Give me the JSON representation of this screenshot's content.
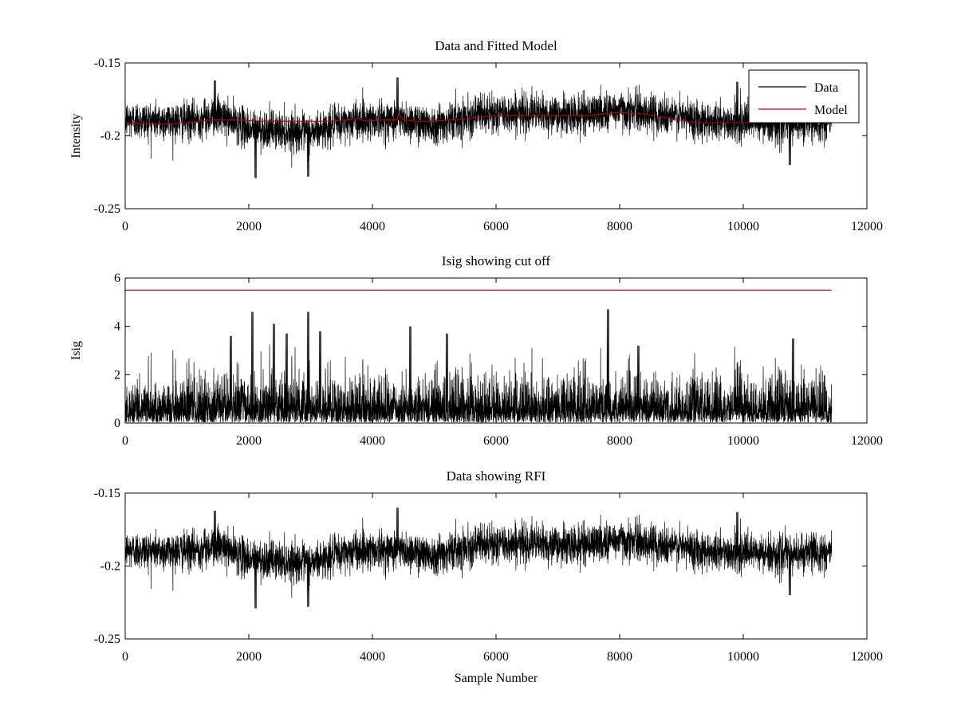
{
  "chart_data": [
    {
      "type": "line",
      "title": "Data and Fitted Model",
      "xlabel": "",
      "ylabel": "Intensity",
      "xlim": [
        0,
        12000
      ],
      "ylim": [
        -0.25,
        -0.15
      ],
      "y_reversed": true,
      "xticks": [
        0,
        2000,
        4000,
        6000,
        8000,
        10000,
        12000
      ],
      "xtick_labels": [
        "0",
        "2000",
        "4000",
        "6000",
        "8000",
        "10000",
        "12000"
      ],
      "yticks": [
        -0.15,
        -0.2,
        -0.25
      ],
      "ytick_labels": [
        "-0.15",
        "-0.2",
        "-0.25"
      ],
      "legend": {
        "placement": "top-right",
        "entries": [
          "Data",
          "Model"
        ]
      },
      "series": [
        {
          "name": "Data",
          "color": "#000000",
          "kind": "noise",
          "n_samples": 11430,
          "baseline": [
            [
              0,
              -0.189
            ],
            [
              1000,
              -0.19
            ],
            [
              1500,
              -0.186
            ],
            [
              2000,
              -0.195
            ],
            [
              2500,
              -0.196
            ],
            [
              3000,
              -0.198
            ],
            [
              3300,
              -0.194
            ],
            [
              3700,
              -0.189
            ],
            [
              4400,
              -0.189
            ],
            [
              5000,
              -0.192
            ],
            [
              5600,
              -0.186
            ],
            [
              6400,
              -0.184
            ],
            [
              7200,
              -0.186
            ],
            [
              8000,
              -0.182
            ],
            [
              8800,
              -0.186
            ],
            [
              9500,
              -0.19
            ],
            [
              10500,
              -0.192
            ],
            [
              11430,
              -0.19
            ]
          ],
          "spikes": [
            [
              1450,
              -0.162
            ],
            [
              4400,
              -0.16
            ],
            [
              9900,
              -0.163
            ],
            [
              2950,
              -0.228
            ],
            [
              10750,
              -0.22
            ],
            [
              2100,
              -0.229
            ]
          ]
        },
        {
          "name": "Model",
          "color": "#cc0000",
          "kind": "line",
          "x": [
            0,
            600,
            1000,
            1400,
            1800,
            2200,
            2600,
            3000,
            3300,
            3600,
            3750,
            3900,
            4200,
            4400,
            4420,
            4500,
            4700,
            5000,
            5600,
            6000,
            6500,
            7000,
            7500,
            8000,
            8400,
            8800,
            9200,
            9600,
            10000,
            10500,
            11430
          ],
          "y": [
            -0.191,
            -0.192,
            -0.191,
            -0.189,
            -0.189,
            -0.19,
            -0.19,
            -0.19,
            -0.19,
            -0.189,
            -0.188,
            -0.19,
            -0.189,
            -0.189,
            -0.185,
            -0.189,
            -0.19,
            -0.19,
            -0.188,
            -0.186,
            -0.186,
            -0.186,
            -0.186,
            -0.184,
            -0.185,
            -0.188,
            -0.191,
            -0.191,
            -0.191,
            -0.19,
            -0.19
          ]
        }
      ]
    },
    {
      "type": "line",
      "title": "Isig showing cut off",
      "xlabel": "",
      "ylabel": "Isig",
      "xlim": [
        0,
        12000
      ],
      "ylim": [
        0,
        6
      ],
      "y_reversed": false,
      "xticks": [
        0,
        2000,
        4000,
        6000,
        8000,
        10000,
        12000
      ],
      "xtick_labels": [
        "0",
        "2000",
        "4000",
        "6000",
        "8000",
        "10000",
        "12000"
      ],
      "yticks": [
        0,
        2,
        4,
        6
      ],
      "ytick_labels": [
        "0",
        "2",
        "4",
        "6"
      ],
      "series": [
        {
          "color": "#000000",
          "kind": "abs_noise",
          "n_samples": 11430,
          "scale": 0.9,
          "spikes": [
            [
              1700,
              3.6
            ],
            [
              2050,
              4.6
            ],
            [
              2400,
              4.1
            ],
            [
              2600,
              3.7
            ],
            [
              2950,
              4.6
            ],
            [
              3150,
              3.8
            ],
            [
              4600,
              4.0
            ],
            [
              5200,
              3.7
            ],
            [
              7800,
              4.7
            ],
            [
              8300,
              3.2
            ],
            [
              10800,
              3.5
            ]
          ]
        },
        {
          "color": "#cc0000",
          "kind": "line",
          "x": [
            0,
            11430
          ],
          "y": [
            5.5,
            5.5
          ]
        }
      ]
    },
    {
      "type": "line",
      "title": "Data showing RFI",
      "xlabel": "Sample Number",
      "ylabel": "",
      "xlim": [
        0,
        12000
      ],
      "ylim": [
        -0.25,
        -0.15
      ],
      "y_reversed": true,
      "xticks": [
        0,
        2000,
        4000,
        6000,
        8000,
        10000,
        12000
      ],
      "xtick_labels": [
        "0",
        "2000",
        "4000",
        "6000",
        "8000",
        "10000",
        "12000"
      ],
      "yticks": [
        -0.15,
        -0.2,
        -0.25
      ],
      "ytick_labels": [
        "-0.15",
        "-0.2",
        "-0.25"
      ],
      "series": [
        {
          "color": "#000000",
          "kind": "noise",
          "n_samples": 11430,
          "baseline": [
            [
              0,
              -0.189
            ],
            [
              1000,
              -0.19
            ],
            [
              1500,
              -0.186
            ],
            [
              2000,
              -0.195
            ],
            [
              2500,
              -0.196
            ],
            [
              3000,
              -0.198
            ],
            [
              3300,
              -0.194
            ],
            [
              3700,
              -0.189
            ],
            [
              4400,
              -0.189
            ],
            [
              5000,
              -0.192
            ],
            [
              5600,
              -0.186
            ],
            [
              6400,
              -0.184
            ],
            [
              7200,
              -0.186
            ],
            [
              8000,
              -0.182
            ],
            [
              8800,
              -0.186
            ],
            [
              9500,
              -0.19
            ],
            [
              10500,
              -0.192
            ],
            [
              11430,
              -0.19
            ]
          ],
          "spikes": [
            [
              1450,
              -0.162
            ],
            [
              4400,
              -0.16
            ],
            [
              9900,
              -0.163
            ],
            [
              2950,
              -0.228
            ],
            [
              10750,
              -0.22
            ],
            [
              2100,
              -0.229
            ]
          ]
        }
      ]
    }
  ]
}
